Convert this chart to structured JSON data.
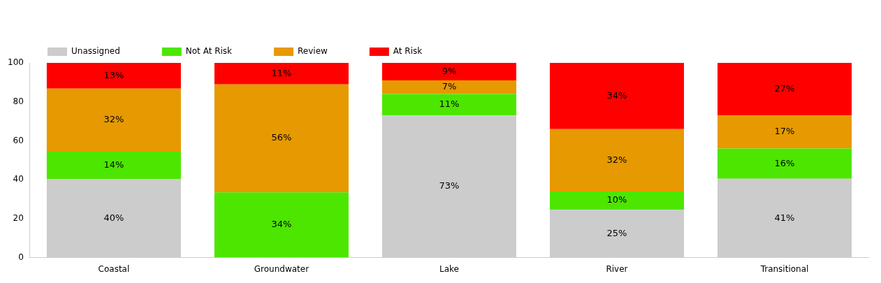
{
  "chart_data": {
    "type": "bar",
    "stacked": true,
    "categories": [
      "Coastal",
      "Groundwater",
      "Lake",
      "River",
      "Transitional"
    ],
    "series": [
      {
        "name": "Unassigned",
        "color": "#cccccc",
        "values": [
          40.4,
          0,
          73,
          24.5,
          40.5
        ],
        "value_labels": [
          "40%",
          null,
          "73%",
          "25%",
          "41%"
        ]
      },
      {
        "name": "Not At Risk",
        "color": "#4de600",
        "values": [
          14,
          33.5,
          11,
          9.5,
          15.5
        ],
        "value_labels": [
          "14%",
          "34%",
          "11%",
          "10%",
          "16%"
        ]
      },
      {
        "name": "Review",
        "color": "#e69900",
        "values": [
          32.4,
          55.5,
          7,
          32,
          17
        ],
        "value_labels": [
          "32%",
          "56%",
          "7%",
          "32%",
          "17%"
        ]
      },
      {
        "name": "At Risk",
        "color": "#ff0000",
        "values": [
          13.2,
          11,
          9,
          34,
          27
        ],
        "value_labels": [
          "13%",
          "11%",
          "9%",
          "34%",
          "27%"
        ]
      }
    ],
    "ylim": [
      0,
      100
    ],
    "yticks": [
      0,
      20,
      40,
      60,
      80,
      100
    ],
    "grid": false,
    "legend": "top left"
  }
}
